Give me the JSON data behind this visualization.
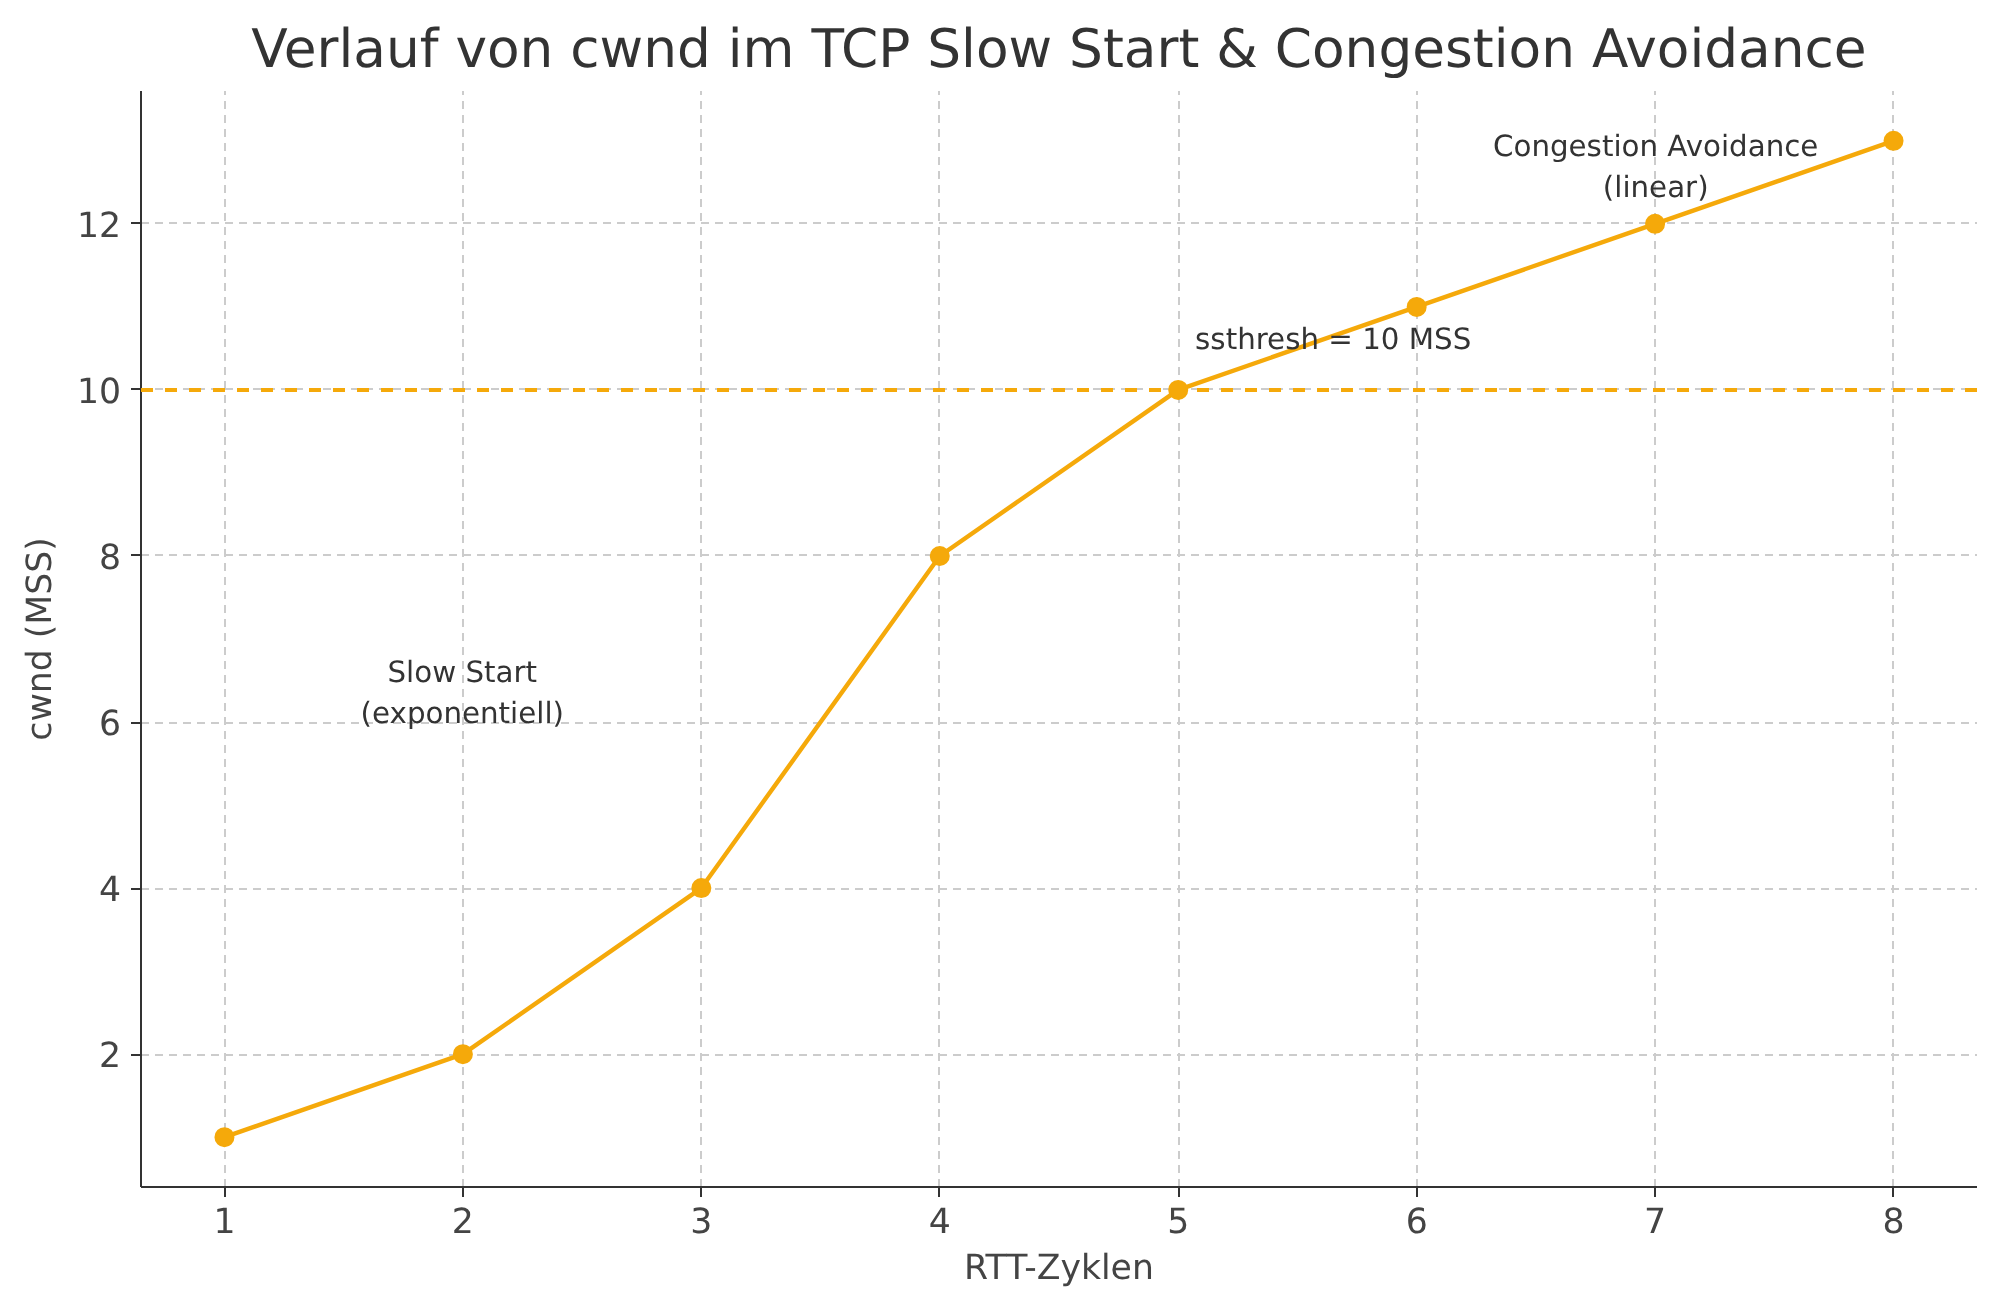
{
  "chart_data": {
    "type": "line",
    "title": "Verlauf von cwnd im TCP Slow Start & Congestion Avoidance",
    "xlabel": "RTT-Zyklen",
    "ylabel": "cwnd (MSS)",
    "x": [
      1,
      2,
      3,
      4,
      5,
      6,
      7,
      8
    ],
    "series": [
      {
        "color": "#f5a90a",
        "values": [
          1,
          2,
          4,
          8,
          10,
          11,
          12,
          13
        ]
      }
    ],
    "xlim": [
      0.65,
      8.35
    ],
    "ylim": [
      0.4,
      13.6
    ],
    "xticks": [
      1,
      2,
      3,
      4,
      5,
      6,
      7,
      8
    ],
    "yticks": [
      2,
      4,
      6,
      8,
      10,
      12
    ],
    "ref_lines": [
      {
        "axis": "y",
        "value": 10,
        "color": "#f5a90a",
        "line_style": "dashed"
      }
    ],
    "annotations": [
      "Slow Start\n(exponentiell)",
      {
        "text": "ssthresh = 10 MSS",
        "x": 5.65,
        "y": 10.6
      },
      "Congestion Avoidance\n(linear)"
    ],
    "grid": true,
    "marker": "circle",
    "line_style": "solid"
  }
}
